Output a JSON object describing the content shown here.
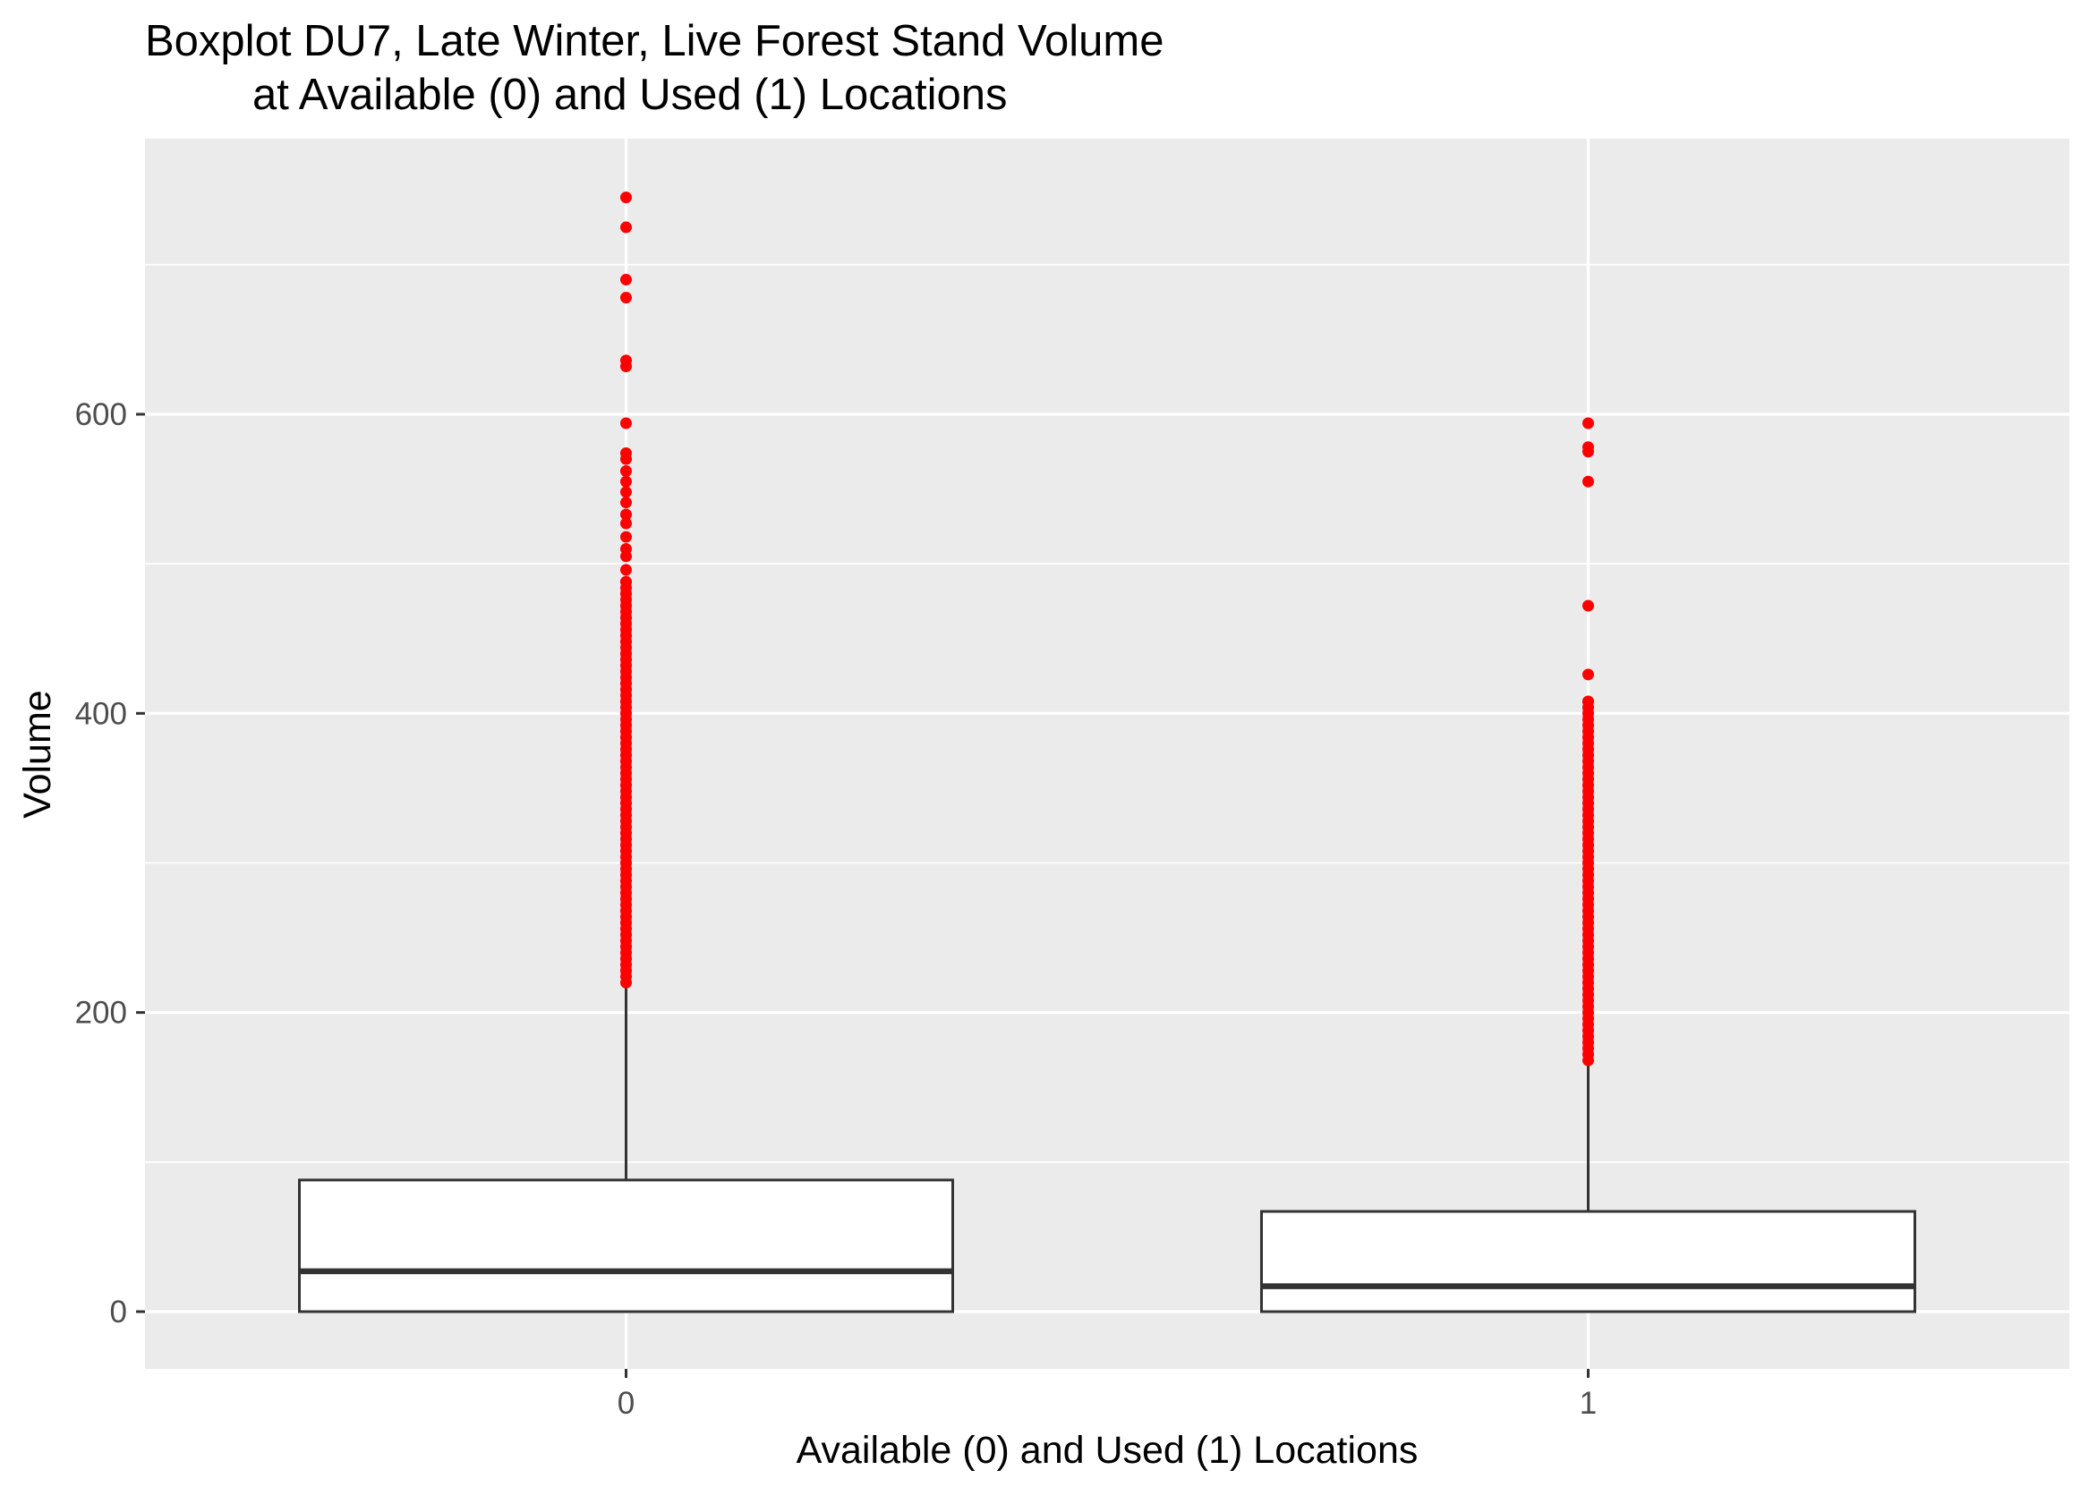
{
  "chart_data": {
    "type": "box",
    "title": "Boxplot DU7, Late Winter, Live Forest Stand Volume",
    "subtitle": "at Available (0) and Used (1) Locations",
    "xlabel": "Available (0) and Used (1) Locations",
    "ylabel": "Volume",
    "categories": [
      "0",
      "1"
    ],
    "ylim": [
      -36,
      776
    ],
    "yticks": [
      0,
      200,
      400,
      600
    ],
    "ytick_labels": [
      "0",
      "200",
      "400",
      "600"
    ],
    "grid": true,
    "panel_background": "#ebebeb",
    "box_fill": "#ffffff",
    "box_stroke": "#333333",
    "outlier_color": "#ff0000",
    "boxes": [
      {
        "category": "0",
        "min": 0,
        "q1": 0,
        "median": 27,
        "q3": 88,
        "whisker_high": 220,
        "outliers": [
          745,
          725,
          690,
          678,
          636,
          632,
          594,
          574,
          570,
          562,
          555,
          548,
          541,
          533,
          527,
          518,
          510,
          505,
          496,
          488
        ],
        "outlier_range": [
          220,
          488
        ]
      },
      {
        "category": "1",
        "min": 0,
        "q1": 0,
        "median": 17,
        "q3": 67,
        "whisker_high": 168,
        "outliers": [
          594,
          578,
          575,
          555,
          472,
          426,
          408
        ],
        "outlier_range": [
          168,
          408
        ]
      }
    ]
  }
}
